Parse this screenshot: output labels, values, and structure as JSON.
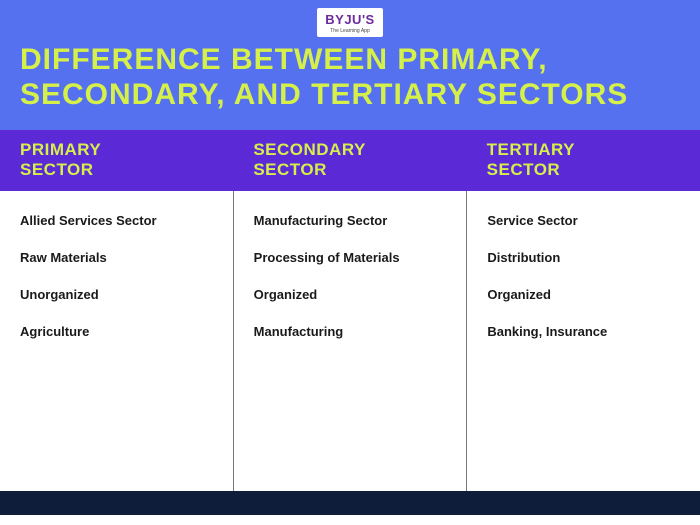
{
  "logo": {
    "brand": "BYJU'S",
    "tagline": "The Learning App"
  },
  "title": "DIFFERENCE BETWEEN PRIMARY, SECONDARY, AND TERTIARY SECTORS",
  "colors": {
    "header_bg": "#5571f0",
    "title_color": "#d6f04a",
    "col_header_bg": "#5b29d6",
    "footer_bg": "#0e1d3a",
    "divider": "#777",
    "item_text": "#1a1a1a"
  },
  "columns": [
    {
      "heading_line1": "PRIMARY",
      "heading_line2": "SECTOR",
      "items": [
        "Allied Services Sector",
        "Raw Materials",
        "Unorganized",
        "Agriculture"
      ]
    },
    {
      "heading_line1": "SECONDARY",
      "heading_line2": "SECTOR",
      "items": [
        "Manufacturing Sector",
        "Processing of Materials",
        "Organized",
        "Manufacturing"
      ]
    },
    {
      "heading_line1": "TERTIARY",
      "heading_line2": "SECTOR",
      "items": [
        "Service Sector",
        "Distribution",
        "Organized",
        "Banking, Insurance"
      ]
    }
  ]
}
